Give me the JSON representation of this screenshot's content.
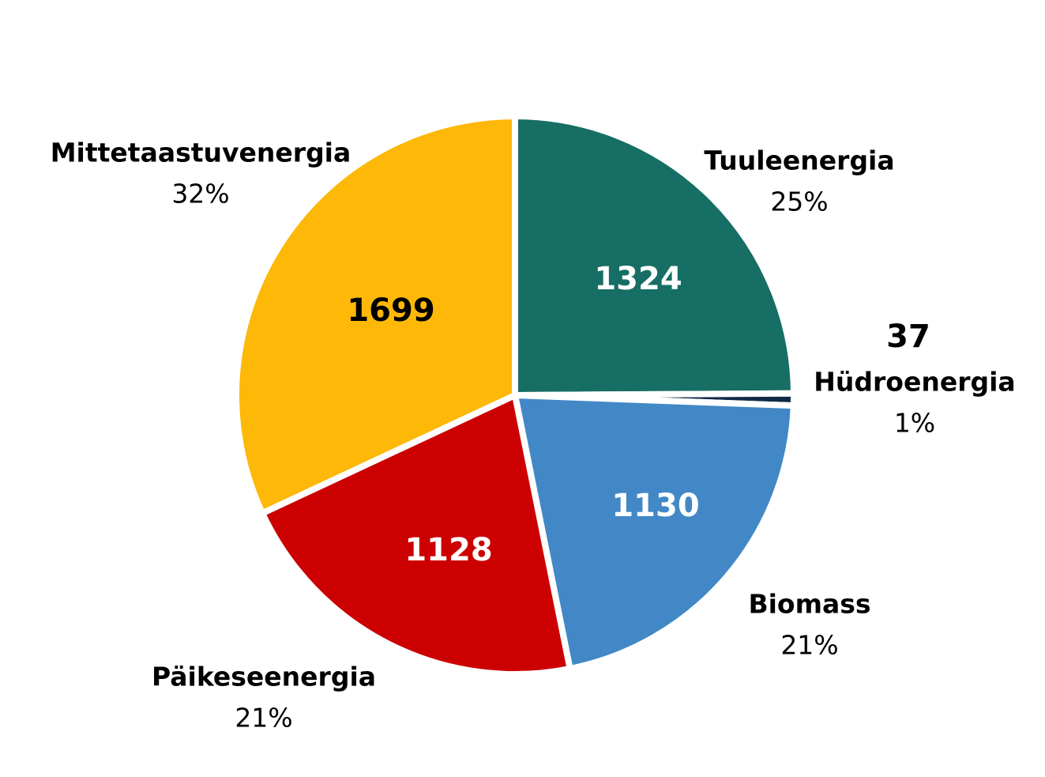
{
  "chart_data": {
    "type": "pie",
    "title": "",
    "start_angle_deg": 0,
    "direction": "clockwise",
    "legend": "none",
    "slices": [
      {
        "category": "Tuuleenergia",
        "value": 1324,
        "percent_label": "25%",
        "color": "#166E64",
        "value_text_color": "#ffffff"
      },
      {
        "category": "Hüdroenergia",
        "value": 37,
        "percent_label": "1%",
        "color": "#0E2A47",
        "value_text_color": "#000000"
      },
      {
        "category": "Biomass",
        "value": 1130,
        "percent_label": "21%",
        "color": "#4288C6",
        "value_text_color": "#ffffff"
      },
      {
        "category": "Päikeseenergia",
        "value": 1128,
        "percent_label": "21%",
        "color": "#CC0000",
        "value_text_color": "#ffffff"
      },
      {
        "category": "Mittetaastuvenergia",
        "value": 1699,
        "percent_label": "32%",
        "color": "#FDB808",
        "value_text_color": "#000000"
      }
    ]
  }
}
